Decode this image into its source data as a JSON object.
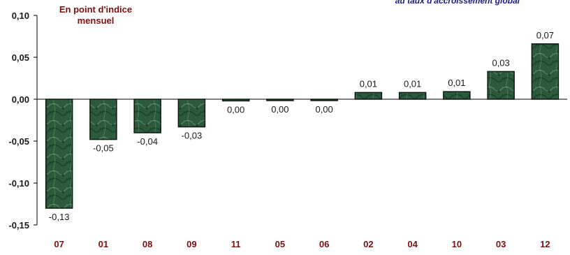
{
  "colors": {
    "bar_fill": "#2c5a3c",
    "bar_stroke": "#0b1a10",
    "axis_label": "#7a1010",
    "note_text": "#1c1c8a"
  },
  "unit_label": {
    "line1": "En point d'indice",
    "line2": "mensuel"
  },
  "top_note": "au taux d'accroissement global",
  "chart_data": {
    "type": "bar",
    "categories": [
      "07",
      "01",
      "08",
      "09",
      "11",
      "05",
      "06",
      "02",
      "04",
      "10",
      "03",
      "12"
    ],
    "values": [
      -0.13,
      -0.048,
      -0.04,
      -0.033,
      -0.002,
      -0.001,
      -0.001,
      0.008,
      0.008,
      0.009,
      0.033,
      0.066
    ],
    "value_labels": [
      "-0,13",
      "-0,05",
      "-0,04",
      "-0,03",
      "0,00",
      "0,00",
      "0,00",
      "0,01",
      "0,01",
      "0,01",
      "0,03",
      "0,07"
    ],
    "yticks": [
      0.1,
      0.05,
      0.0,
      -0.05,
      -0.1,
      -0.15
    ],
    "ytick_labels": [
      "0,10",
      "0,05",
      "0,00",
      "-0,05",
      "-0,10",
      "-0,15"
    ],
    "ylim": [
      -0.15,
      0.1
    ],
    "grid": false,
    "legend": "none"
  }
}
